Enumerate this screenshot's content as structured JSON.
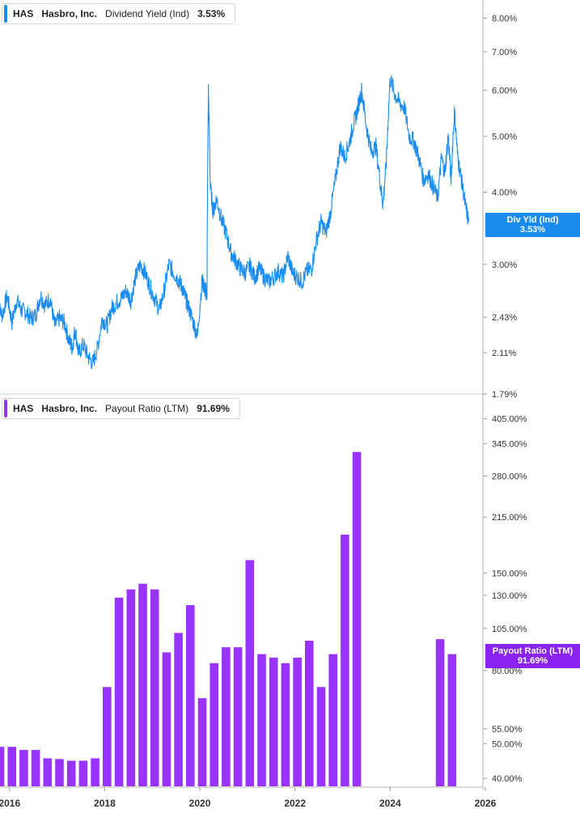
{
  "chart_data": [
    {
      "type": "line",
      "legend": {
        "ticker": "HAS",
        "company": "Hasbro, Inc.",
        "metric": "Dividend Yield (Ind)",
        "value": "3.53%"
      },
      "badge": {
        "label": "Div Yld (Ind)",
        "value": "3.53%"
      },
      "color": "#1a8cf0",
      "scale": "log",
      "ylim": [
        1.79,
        8.6
      ],
      "y_ticks": [
        {
          "value": 8.0,
          "label": "8.00%"
        },
        {
          "value": 7.0,
          "label": "7.00%"
        },
        {
          "value": 6.0,
          "label": "6.00%"
        },
        {
          "value": 5.0,
          "label": "5.00%"
        },
        {
          "value": 4.0,
          "label": "4.00%"
        },
        {
          "value": 3.0,
          "label": "3.00%"
        },
        {
          "value": 2.43,
          "label": "2.43%"
        },
        {
          "value": 2.11,
          "label": "2.11%"
        },
        {
          "value": 1.79,
          "label": "1.79%"
        }
      ],
      "series": [
        {
          "x": [
            2015.75,
            2015.85,
            2015.95,
            2016.05,
            2016.15,
            2016.25,
            2016.35,
            2016.45,
            2016.55,
            2016.65,
            2016.75,
            2016.85,
            2016.95,
            2017.05,
            2017.15,
            2017.25,
            2017.32,
            2017.38,
            2017.45,
            2017.55,
            2017.65,
            2017.75,
            2017.85,
            2017.95,
            2018.05,
            2018.15,
            2018.25,
            2018.35,
            2018.45,
            2018.55,
            2018.65,
            2018.75,
            2018.85,
            2018.95,
            2019.05,
            2019.15,
            2019.25,
            2019.35,
            2019.45,
            2019.55,
            2019.62,
            2019.68,
            2019.75,
            2019.85,
            2019.95,
            2020.05,
            2020.08,
            2020.12,
            2020.15,
            2020.18,
            2020.22,
            2020.28,
            2020.35,
            2020.45,
            2020.55,
            2020.65,
            2020.75,
            2020.85,
            2020.95,
            2021.05,
            2021.15,
            2021.25,
            2021.35,
            2021.45,
            2021.55,
            2021.65,
            2021.75,
            2021.85,
            2021.95,
            2022.05,
            2022.15,
            2022.25,
            2022.35,
            2022.45,
            2022.55,
            2022.65,
            2022.75,
            2022.85,
            2022.95,
            2023.05,
            2023.15,
            2023.22,
            2023.3,
            2023.4,
            2023.5,
            2023.6,
            2023.7,
            2023.8,
            2023.85,
            2023.92,
            2024.0,
            2024.1,
            2024.2,
            2024.3,
            2024.4,
            2024.5,
            2024.6,
            2024.7,
            2024.8,
            2024.9,
            2025.0,
            2025.08,
            2025.15,
            2025.22,
            2025.28,
            2025.35,
            2025.42,
            2025.5,
            2025.58,
            2025.65
          ],
          "y": [
            2.55,
            2.45,
            2.65,
            2.38,
            2.6,
            2.5,
            2.48,
            2.42,
            2.45,
            2.65,
            2.55,
            2.62,
            2.35,
            2.42,
            2.38,
            2.22,
            2.15,
            2.32,
            2.1,
            2.18,
            2.08,
            2.02,
            2.15,
            2.42,
            2.35,
            2.52,
            2.58,
            2.62,
            2.7,
            2.6,
            2.85,
            3.0,
            2.9,
            2.75,
            2.62,
            2.5,
            2.7,
            3.0,
            2.9,
            2.82,
            2.75,
            2.65,
            2.55,
            2.4,
            2.25,
            2.82,
            2.75,
            2.7,
            2.68,
            6.0,
            4.1,
            3.7,
            3.9,
            3.6,
            3.4,
            3.15,
            3.05,
            2.95,
            2.9,
            2.98,
            2.85,
            2.95,
            2.85,
            2.8,
            2.85,
            2.92,
            2.85,
            3.1,
            2.9,
            2.85,
            2.8,
            2.92,
            2.95,
            3.3,
            3.55,
            3.4,
            3.7,
            4.2,
            4.8,
            4.6,
            4.9,
            5.2,
            5.5,
            6.0,
            5.2,
            4.7,
            4.8,
            4.1,
            3.8,
            4.5,
            6.3,
            5.9,
            5.7,
            5.6,
            5.0,
            4.9,
            4.6,
            4.2,
            4.3,
            4.1,
            3.9,
            4.6,
            4.3,
            5.0,
            4.2,
            5.5,
            4.6,
            4.2,
            3.8,
            3.55
          ]
        }
      ]
    },
    {
      "type": "bar",
      "legend": {
        "ticker": "HAS",
        "company": "Hasbro, Inc.",
        "metric": "Payout Ratio (LTM)",
        "value": "91.69%"
      },
      "badge": {
        "label": "Payout Ratio (LTM)",
        "value": "91.69%"
      },
      "color": "#9933ff",
      "scale": "log",
      "ylim": [
        38,
        470
      ],
      "y_ticks": [
        {
          "value": 405,
          "label": "405.00%"
        },
        {
          "value": 345,
          "label": "345.00%"
        },
        {
          "value": 280,
          "label": "280.00%"
        },
        {
          "value": 215,
          "label": "215.00%"
        },
        {
          "value": 150,
          "label": "150.00%"
        },
        {
          "value": 130,
          "label": "130.00%"
        },
        {
          "value": 105,
          "label": "105.00%"
        },
        {
          "value": 80,
          "label": "80.00%"
        },
        {
          "value": 55,
          "label": "55.00%"
        },
        {
          "value": 50,
          "label": "50.00%"
        },
        {
          "value": 40,
          "label": "40.00%"
        }
      ],
      "series": [
        {
          "x": [
            2015.8,
            2016.05,
            2016.3,
            2016.55,
            2016.8,
            2017.05,
            2017.3,
            2017.55,
            2017.8,
            2018.05,
            2018.3,
            2018.55,
            2018.8,
            2019.05,
            2019.3,
            2019.55,
            2019.8,
            2020.05,
            2020.3,
            2020.55,
            2020.8,
            2021.05,
            2021.3,
            2021.55,
            2021.8,
            2022.05,
            2022.3,
            2022.55,
            2022.8,
            2023.05,
            2023.3,
            2025.05,
            2025.3
          ],
          "y": [
            49,
            49,
            48,
            48,
            45.5,
            45.3,
            44.8,
            44.8,
            45.5,
            72,
            128,
            135,
            140,
            135,
            90,
            102,
            122,
            67,
            84,
            93,
            93,
            163,
            89,
            87,
            84,
            87,
            97,
            72,
            89,
            192,
            327,
            98,
            89
          ]
        }
      ]
    }
  ],
  "x_axis": {
    "range": [
      2015.8,
      2025.95
    ],
    "ticks": [
      {
        "value": 2016,
        "label": "2016"
      },
      {
        "value": 2018,
        "label": "2018"
      },
      {
        "value": 2020,
        "label": "2020"
      },
      {
        "value": 2022,
        "label": "2022"
      },
      {
        "value": 2024,
        "label": "2024"
      },
      {
        "value": 2026,
        "label": "2026"
      }
    ]
  }
}
